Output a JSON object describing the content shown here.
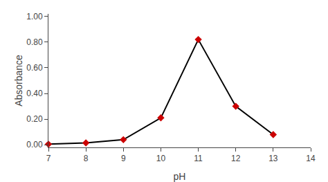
{
  "chart_data": {
    "type": "line",
    "xlabel": "pH",
    "ylabel": "Absorbance",
    "x": [
      7,
      8,
      9,
      10,
      11,
      12,
      13
    ],
    "values": [
      0.005,
      0.015,
      0.04,
      0.21,
      0.82,
      0.3,
      0.08
    ],
    "color": "#000000",
    "colors": [
      "#cc0000",
      "#cc0000",
      "#cc0000",
      "#cc0000",
      "#cc0000",
      "#cc0000",
      "#cc0000"
    ],
    "marker": "diamond",
    "xlim": [
      7,
      14
    ],
    "ylim": [
      -0.02,
      1.02
    ],
    "xticks": [
      7,
      8,
      9,
      10,
      11,
      12,
      13,
      14
    ],
    "yticks": [
      {
        "value": 0.0,
        "label": "0.00"
      },
      {
        "value": 0.2,
        "label": "0.20"
      },
      {
        "value": 0.4,
        "label": "0.40"
      },
      {
        "value": 0.6,
        "label": "0.60"
      },
      {
        "value": 0.8,
        "label": "0.80"
      },
      {
        "value": 1.0,
        "label": "1.00"
      }
    ],
    "grid": false
  }
}
